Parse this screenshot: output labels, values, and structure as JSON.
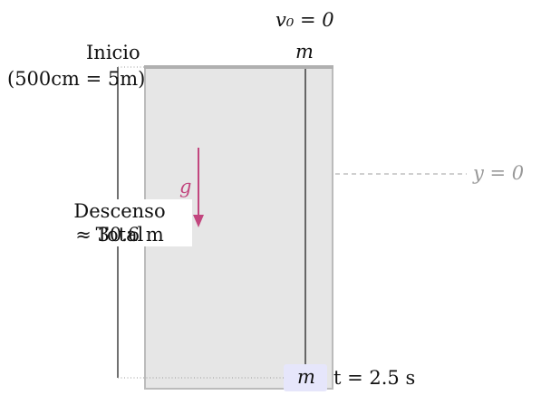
{
  "labels": {
    "v0": "v₀ = 0",
    "mass_top": "m",
    "inicio": "Inicio",
    "inicio_sub": "(500cm = 5m)",
    "y0": "y = 0",
    "gravity": "g",
    "descenso_line1": "Descenso Total",
    "descenso_line2": "≈ 30.6 m",
    "mass_bottom": "m",
    "time": "t = 2.5 s"
  },
  "colors": {
    "column_fill": "#e6e6e6",
    "column_border": "#bbbbbb",
    "top_bar": "#b0b0b0",
    "gravity_arrow": "#c2467e",
    "reference_line": "#a0a0a0",
    "mass_box_fill": "#e6e6fb"
  }
}
